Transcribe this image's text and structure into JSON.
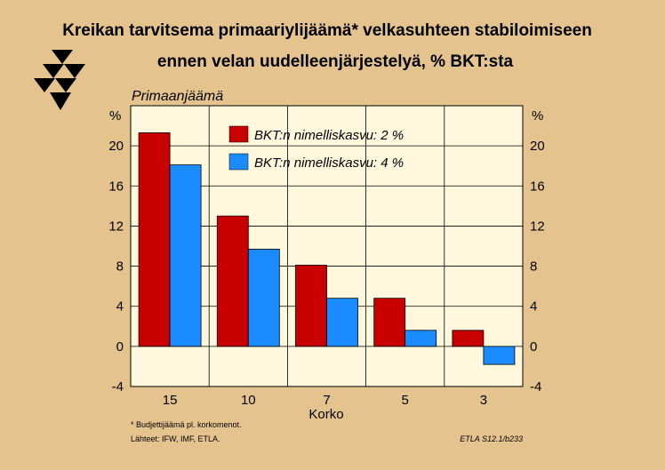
{
  "chart_data": {
    "type": "bar",
    "title": "Kreikan tarvitsema primaariylijäämä* velkasuhteen stabiloimiseen",
    "subtitle": "ennen velan uudelleenjärjestelyä, % BKT:sta",
    "ylabel": "Primaanjäämä",
    "y_unit": "%",
    "xlabel": "Korko",
    "categories": [
      "15",
      "10",
      "7",
      "5",
      "3"
    ],
    "series": [
      {
        "name": "BKT:n nimelliskasvu: 2 %",
        "color": "#c80000",
        "values": [
          21.3,
          13.0,
          8.1,
          4.8,
          1.6
        ]
      },
      {
        "name": "BKT:n nimelliskasvu: 4 %",
        "color": "#1a8cff",
        "values": [
          18.1,
          9.7,
          4.8,
          1.6,
          -1.8
        ]
      }
    ],
    "ylim": [
      -4,
      24
    ],
    "yticks": [
      -4,
      0,
      4,
      8,
      12,
      16,
      20
    ],
    "grid": true,
    "legend_position": "top-center",
    "plot_background": "#fff8dc",
    "footnote": "* Budjettijäämä pl. korkomenot.",
    "source": "Lähteet:   IFW, IMF, ETLA.",
    "code": "ETLA S12.1/b233"
  }
}
